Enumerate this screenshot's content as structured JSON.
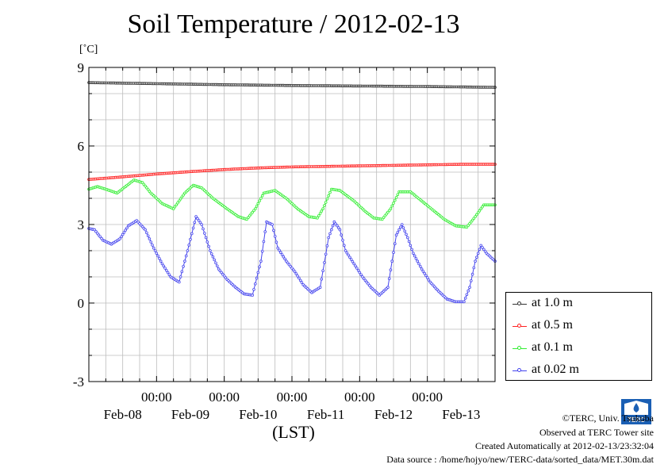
{
  "chart_data": {
    "type": "line",
    "title": "Soil Temperature / 2012-02-13",
    "unit_label": "[˚C]",
    "xlabel": "(LST)",
    "ylim": [
      -3,
      9
    ],
    "yticks": [
      -3,
      0,
      3,
      6,
      9
    ],
    "xlim_hours": [
      0,
      144
    ],
    "x_time_ticks": [
      {
        "hours": 24,
        "label": "00:00"
      },
      {
        "hours": 48,
        "label": "00:00"
      },
      {
        "hours": 72,
        "label": "00:00"
      },
      {
        "hours": 96,
        "label": "00:00"
      },
      {
        "hours": 120,
        "label": "00:00"
      }
    ],
    "x_date_labels": [
      {
        "hours": 12,
        "label": "Feb-08"
      },
      {
        "hours": 36,
        "label": "Feb-09"
      },
      {
        "hours": 60,
        "label": "Feb-10"
      },
      {
        "hours": 84,
        "label": "Feb-11"
      },
      {
        "hours": 108,
        "label": "Feb-12"
      },
      {
        "hours": 132,
        "label": "Feb-13"
      }
    ],
    "grid": true,
    "legend_position": "right",
    "series": [
      {
        "name": "at 1.0 m",
        "color": "#333333",
        "x": [
          0,
          24,
          48,
          72,
          96,
          120,
          144
        ],
        "y": [
          8.42,
          8.38,
          8.34,
          8.31,
          8.29,
          8.27,
          8.24
        ]
      },
      {
        "name": "at 0.5 m",
        "color": "#ff2020",
        "x": [
          0,
          12,
          24,
          36,
          48,
          60,
          72,
          84,
          96,
          108,
          120,
          132,
          144
        ],
        "y": [
          4.72,
          4.82,
          4.93,
          5.02,
          5.1,
          5.16,
          5.2,
          5.22,
          5.24,
          5.26,
          5.28,
          5.3,
          5.3
        ]
      },
      {
        "name": "at 0.1 m",
        "color": "#33ee33",
        "x": [
          0,
          3,
          6,
          10,
          13,
          16,
          19,
          22,
          26,
          30,
          34,
          37,
          40,
          44,
          49,
          53,
          56,
          59,
          62,
          66,
          70,
          74,
          78,
          81,
          83,
          86,
          89,
          94,
          98,
          101,
          104,
          107,
          110,
          114,
          118,
          122,
          126,
          130,
          134,
          137,
          140,
          144
        ],
        "y": [
          4.35,
          4.45,
          4.35,
          4.2,
          4.45,
          4.7,
          4.6,
          4.2,
          3.8,
          3.6,
          4.2,
          4.5,
          4.4,
          4.0,
          3.6,
          3.3,
          3.2,
          3.6,
          4.2,
          4.3,
          4.0,
          3.6,
          3.3,
          3.25,
          3.6,
          4.35,
          4.3,
          3.9,
          3.5,
          3.25,
          3.2,
          3.6,
          4.25,
          4.25,
          3.9,
          3.55,
          3.2,
          2.95,
          2.9,
          3.3,
          3.75,
          3.75
        ]
      },
      {
        "name": "at 0.02 m",
        "color": "#4444ee",
        "x": [
          0,
          2,
          5,
          8,
          11,
          14,
          17,
          20,
          23,
          26,
          29,
          32,
          35,
          38,
          40,
          43,
          46,
          49,
          52,
          55,
          58,
          61,
          63,
          65,
          67,
          70,
          73,
          76,
          79,
          82,
          85,
          87,
          89,
          91,
          94,
          97,
          100,
          103,
          106,
          109,
          111,
          113,
          115,
          118,
          121,
          124,
          127,
          130,
          133,
          135,
          137,
          139,
          141,
          144
        ],
        "y": [
          2.85,
          2.8,
          2.4,
          2.25,
          2.45,
          2.95,
          3.15,
          2.8,
          2.1,
          1.5,
          1.0,
          0.8,
          2.0,
          3.3,
          3.0,
          2.0,
          1.3,
          0.9,
          0.6,
          0.35,
          0.3,
          1.6,
          3.1,
          3.0,
          2.1,
          1.6,
          1.2,
          0.7,
          0.4,
          0.6,
          2.5,
          3.1,
          2.8,
          2.0,
          1.5,
          1.0,
          0.6,
          0.3,
          0.6,
          2.6,
          3.0,
          2.5,
          1.9,
          1.3,
          0.8,
          0.45,
          0.15,
          0.05,
          0.05,
          0.6,
          1.6,
          2.2,
          1.9,
          1.6
        ]
      }
    ]
  },
  "footer": {
    "copyright": "©TERC, Univ. Tsukuba",
    "observed": "Observed at TERC Tower site",
    "created": "Created Automatically at 2012-02-13/23:32:04",
    "source": "Data source : /home/hojyo/new/TERC-data/sorted_data/MET.30m.dat"
  },
  "logo": {
    "text": "TERC",
    "color": "#1a5fb4"
  }
}
